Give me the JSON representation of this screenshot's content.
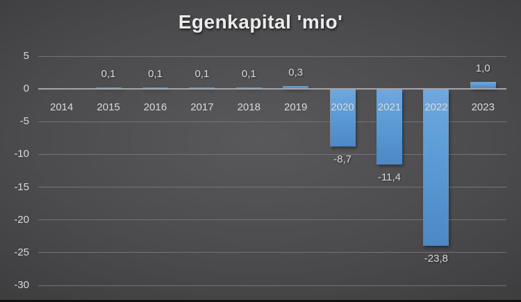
{
  "chart_data": {
    "type": "bar",
    "title": "Egenkapital 'mio'",
    "categories": [
      "2014",
      "2015",
      "2016",
      "2017",
      "2018",
      "2019",
      "2020",
      "2021",
      "2022",
      "2023"
    ],
    "values": [
      0,
      0.1,
      0.1,
      0.1,
      0.1,
      0.3,
      -8.7,
      -11.4,
      -23.8,
      1.0
    ],
    "data_labels": [
      null,
      "0,1",
      "0,1",
      "0,1",
      "0,1",
      "0,3",
      "-8,7",
      "-11,4",
      "-23,8",
      "1,0"
    ],
    "y_ticks": [
      5,
      0,
      -5,
      -10,
      -15,
      -20,
      -25,
      -30
    ],
    "ylim": [
      -30,
      5
    ],
    "xlabel": "",
    "ylabel": "",
    "grid": true,
    "legend_position": "none",
    "decimal_separator": ",",
    "colors": {
      "bar": "#5B9BD5",
      "background_center": "#59595B",
      "background_edge": "#262628",
      "gridline": "#747476",
      "axis_line": "#A6A6A8",
      "text": "#D9D9D9",
      "title": "#EBEBEB"
    }
  }
}
